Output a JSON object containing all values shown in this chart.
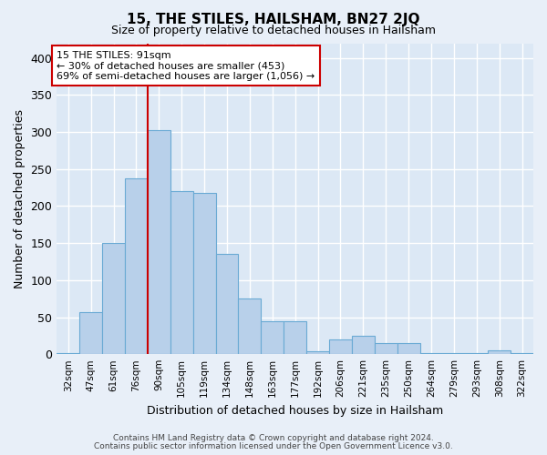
{
  "title": "15, THE STILES, HAILSHAM, BN27 2JQ",
  "subtitle": "Size of property relative to detached houses in Hailsham",
  "xlabel": "Distribution of detached houses by size in Hailsham",
  "ylabel": "Number of detached properties",
  "footer_line1": "Contains HM Land Registry data © Crown copyright and database right 2024.",
  "footer_line2": "Contains public sector information licensed under the Open Government Licence v3.0.",
  "annotation_line1": "15 THE STILES: 91sqm",
  "annotation_line2": "← 30% of detached houses are smaller (453)",
  "annotation_line3": "69% of semi-detached houses are larger (1,056) →",
  "bar_categories": [
    "32sqm",
    "47sqm",
    "61sqm",
    "76sqm",
    "90sqm",
    "105sqm",
    "119sqm",
    "134sqm",
    "148sqm",
    "163sqm",
    "177sqm",
    "192sqm",
    "206sqm",
    "221sqm",
    "235sqm",
    "250sqm",
    "264sqm",
    "279sqm",
    "293sqm",
    "308sqm",
    "322sqm"
  ],
  "bar_values": [
    2,
    57,
    150,
    238,
    303,
    220,
    218,
    135,
    75,
    45,
    45,
    4,
    20,
    25,
    15,
    15,
    2,
    2,
    2,
    5,
    2
  ],
  "bar_color": "#b8d0ea",
  "bar_edge_color": "#6aaad4",
  "vline_color": "#cc0000",
  "vline_x": 3.5,
  "bg_color": "#e8eff8",
  "plot_bg_color": "#dce8f5",
  "grid_color": "#ffffff",
  "annotation_box_edge": "#cc0000",
  "ylim": [
    0,
    420
  ],
  "yticks": [
    0,
    50,
    100,
    150,
    200,
    250,
    300,
    350,
    400
  ]
}
